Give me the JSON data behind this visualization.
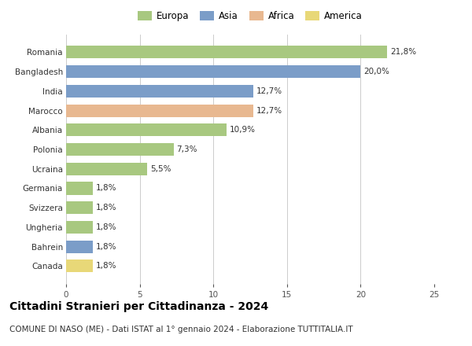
{
  "categories": [
    "Canada",
    "Bahrein",
    "Ungheria",
    "Svizzera",
    "Germania",
    "Ucraina",
    "Polonia",
    "Albania",
    "Marocco",
    "India",
    "Bangladesh",
    "Romania"
  ],
  "values": [
    1.8,
    1.8,
    1.8,
    1.8,
    1.8,
    5.5,
    7.3,
    10.9,
    12.7,
    12.7,
    20.0,
    21.8
  ],
  "labels": [
    "1,8%",
    "1,8%",
    "1,8%",
    "1,8%",
    "1,8%",
    "5,5%",
    "7,3%",
    "10,9%",
    "12,7%",
    "12,7%",
    "20,0%",
    "21,8%"
  ],
  "continents": [
    "America",
    "Asia",
    "Europa",
    "Europa",
    "Europa",
    "Europa",
    "Europa",
    "Europa",
    "Africa",
    "Asia",
    "Asia",
    "Europa"
  ],
  "colors": {
    "Europa": "#a8c880",
    "Asia": "#7b9dc8",
    "Africa": "#e8b890",
    "America": "#e8d878"
  },
  "legend_order": [
    "Europa",
    "Asia",
    "Africa",
    "America"
  ],
  "xlim": [
    0,
    25
  ],
  "xticks": [
    0,
    5,
    10,
    15,
    20,
    25
  ],
  "title": "Cittadini Stranieri per Cittadinanza - 2024",
  "subtitle": "COMUNE DI NASO (ME) - Dati ISTAT al 1° gennaio 2024 - Elaborazione TUTTITALIA.IT",
  "background_color": "#ffffff",
  "grid_color": "#cccccc",
  "bar_height": 0.65,
  "title_fontsize": 10,
  "subtitle_fontsize": 7.5,
  "label_fontsize": 7.5,
  "tick_fontsize": 7.5,
  "legend_fontsize": 8.5
}
